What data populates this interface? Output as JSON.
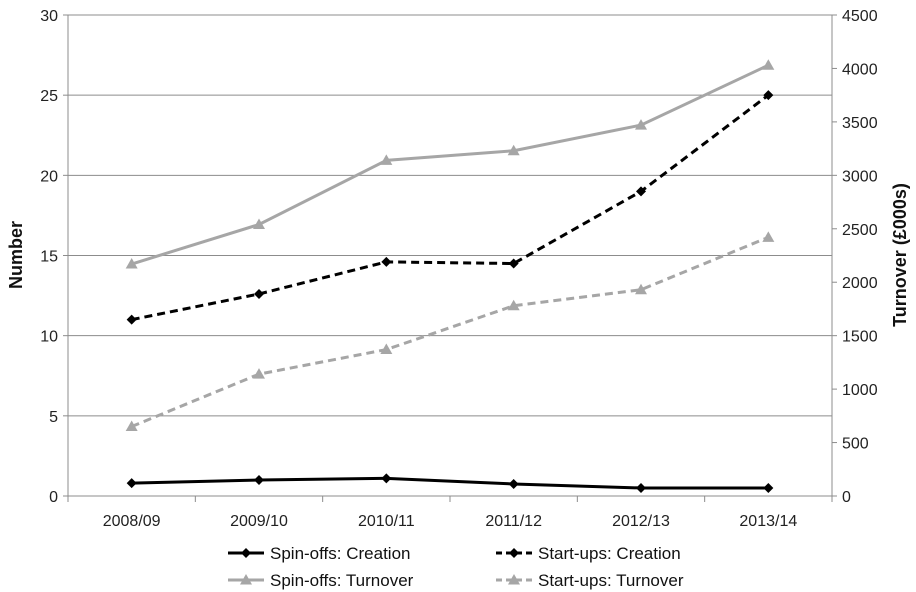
{
  "chart_data": {
    "type": "line",
    "categories": [
      "2008/09",
      "2009/10",
      "2010/11",
      "2011/12",
      "2012/13",
      "2013/14"
    ],
    "ylabel_left": "Number",
    "ylabel_right": "Turnover (£000s)",
    "ylim_left": [
      0,
      30
    ],
    "ylim_right": [
      0,
      4500
    ],
    "yticks_left": [
      "0",
      "5",
      "10",
      "15",
      "20",
      "25",
      "30"
    ],
    "yticks_right": [
      "0",
      "500",
      "1000",
      "1500",
      "2000",
      "2500",
      "3000",
      "3500",
      "4000",
      "4500"
    ],
    "grid": true,
    "legend_position": "bottom",
    "series": [
      {
        "name": "Spin-offs: Creation",
        "axis": "left",
        "values": [
          0.8,
          1.0,
          1.1,
          0.75,
          0.5,
          0.5
        ],
        "color": "#000000",
        "dashed": false,
        "marker": "diamond"
      },
      {
        "name": "Start-ups: Creation",
        "axis": "left",
        "values": [
          11.0,
          12.6,
          14.6,
          14.5,
          19.0,
          25.0
        ],
        "color": "#000000",
        "dashed": true,
        "marker": "diamond"
      },
      {
        "name": "Spin-offs: Turnover",
        "axis": "right",
        "values": [
          2170,
          2540,
          3140,
          3230,
          3470,
          4030
        ],
        "color": "#a6a6a6",
        "dashed": false,
        "marker": "triangle"
      },
      {
        "name": "Start-ups: Turnover",
        "axis": "right",
        "values": [
          650,
          1140,
          1370,
          1780,
          1930,
          2420
        ],
        "color": "#a6a6a6",
        "dashed": true,
        "marker": "triangle"
      }
    ]
  }
}
